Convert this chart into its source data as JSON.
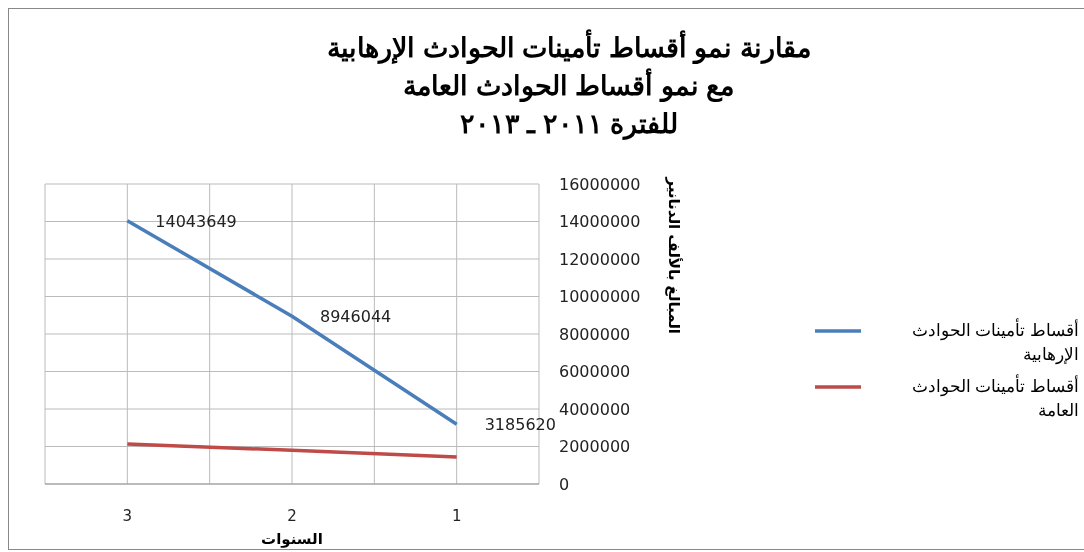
{
  "chart_data": {
    "type": "line",
    "title": "مقارنة نمو أقساط تأمينات الحوادث الإرهابية\nمع نمو أقساط الحوادث العامة\nللفترة ٢٠١١ ـ ٢٠١٣",
    "xlabel": "السنوات",
    "ylabel": "المبالغ بالألف الدنانير",
    "x": [
      3,
      2,
      1
    ],
    "series": [
      {
        "name": "أقساط تأمينات الحوادث الإرهابية",
        "color": "#4a7ebb",
        "values": [
          14043649,
          8946044,
          3185620
        ],
        "value_labels": [
          "14043649",
          "8946044",
          "3185620"
        ]
      },
      {
        "name": "أقساط تأمينات الحوادث العامة",
        "color": "#be4b48",
        "values": [
          2130000,
          1800000,
          1440000
        ]
      }
    ],
    "xlim": [
      3.5,
      0.5
    ],
    "xticks": [
      {
        "value": 3.5,
        "label": null
      },
      3,
      {
        "value": 2.5,
        "label": null
      },
      2,
      {
        "value": 1.5,
        "label": null
      },
      1,
      {
        "value": 0.5,
        "label": null
      }
    ],
    "ylim": [
      0,
      16000000
    ],
    "yticks": [
      0,
      2000000,
      4000000,
      6000000,
      8000000,
      10000000,
      12000000,
      14000000,
      16000000
    ],
    "grid": true,
    "legend": "right",
    "marker": "none",
    "line_style": "solid"
  }
}
